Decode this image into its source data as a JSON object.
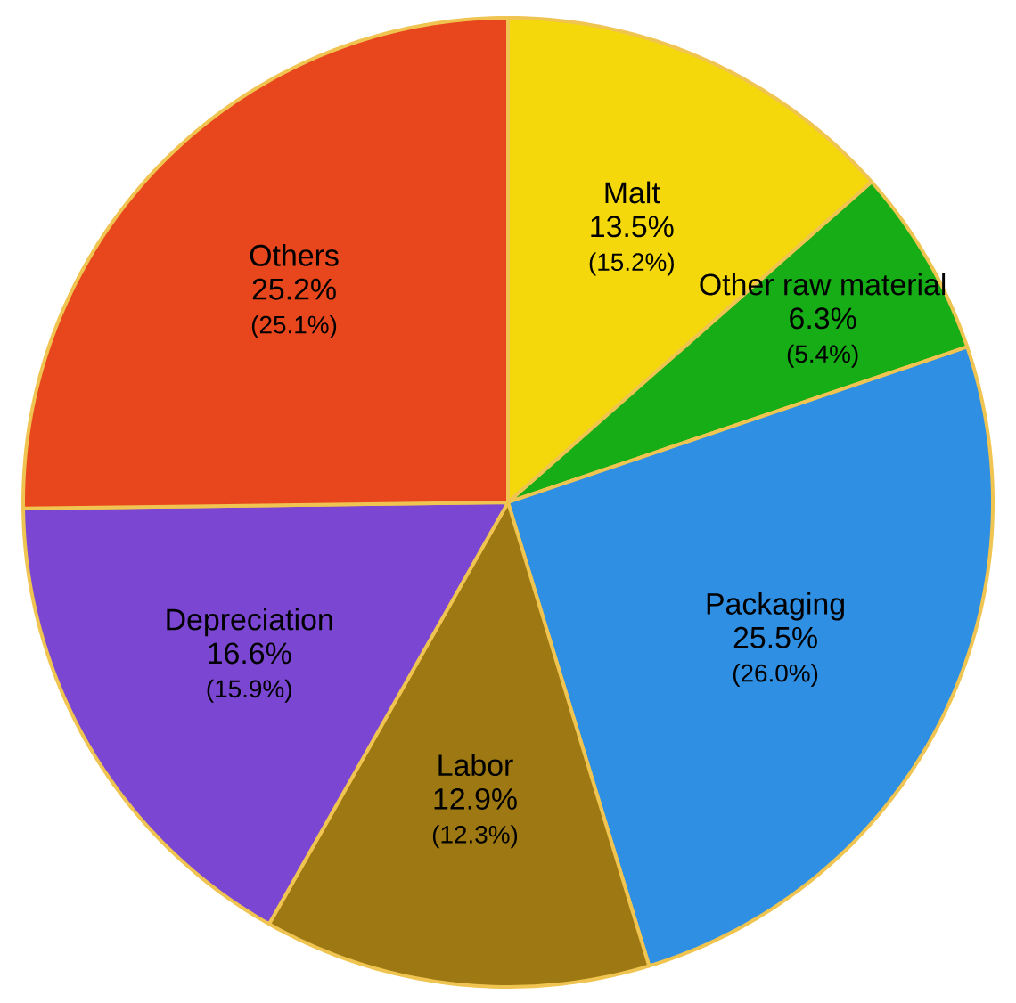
{
  "chart_data": {
    "type": "pie",
    "categories": [
      "Malt",
      "Other raw material",
      "Packaging",
      "Labor",
      "Depreciation",
      "Others"
    ],
    "values": [
      13.5,
      6.3,
      25.5,
      12.9,
      16.6,
      25.2
    ],
    "colors": [
      "#f4d80c",
      "#16ad16",
      "#2f8fe2",
      "#9e7812",
      "#7b47d2",
      "#e8461c"
    ],
    "value_labels": [
      "13.5%",
      "6.3%",
      "25.5%",
      "12.9%",
      "16.6%",
      "25.2%"
    ],
    "annotations": [
      "(15.2%)",
      "(5.4%)",
      "(26.0%)",
      "(12.3%)",
      "(15.9%)",
      "(25.1%)"
    ]
  }
}
